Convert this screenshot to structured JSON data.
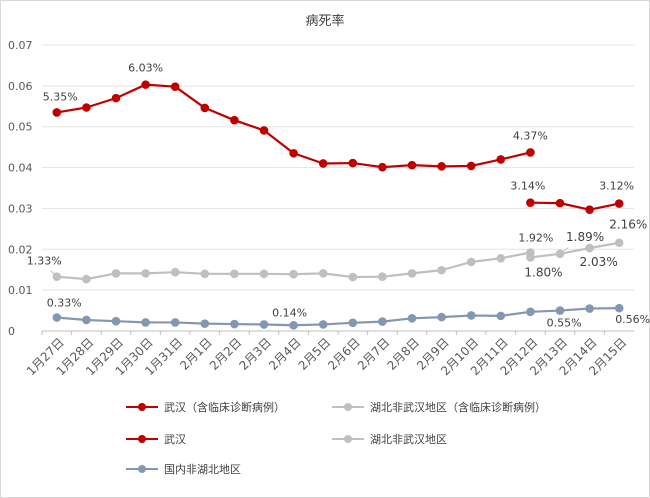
{
  "chart_data": {
    "type": "line",
    "title": "病死率",
    "categories": [
      "1月27日",
      "1月28日",
      "1月29日",
      "1月30日",
      "1月31日",
      "2月1日",
      "2月2日",
      "2月3日",
      "2月4日",
      "2月5日",
      "2月6日",
      "2月7日",
      "2月8日",
      "2月9日",
      "2月10日",
      "2月11日",
      "2月12日",
      "2月13日",
      "2月14日",
      "2月15日"
    ],
    "ylim": [
      0,
      0.07
    ],
    "yticks": [
      "0",
      "0.01",
      "0.02",
      "0.03",
      "0.04",
      "0.05",
      "0.06",
      "0.07"
    ],
    "grid": true,
    "legend_position": "bottom",
    "series": [
      {
        "name": "武汉（含临床诊断病例）",
        "color": "#c00000",
        "values": [
          null,
          null,
          null,
          null,
          null,
          null,
          null,
          null,
          null,
          null,
          null,
          null,
          null,
          null,
          null,
          null,
          0.0314,
          0.0313,
          0.0297,
          0.0312
        ]
      },
      {
        "name": "湖北非武汉地区（含临床诊断病例）",
        "color": "#bfbfbf",
        "values": [
          null,
          null,
          null,
          null,
          null,
          null,
          null,
          null,
          null,
          null,
          null,
          null,
          null,
          null,
          null,
          null,
          0.018,
          0.0189,
          0.0203,
          0.0216
        ]
      },
      {
        "name": "武汉",
        "color": "#c00000",
        "values": [
          0.0535,
          0.0547,
          0.057,
          0.0603,
          0.0598,
          0.0546,
          0.0516,
          0.0491,
          0.0435,
          0.041,
          0.0411,
          0.0401,
          0.0406,
          0.0403,
          0.0404,
          0.042,
          0.0437,
          null,
          null,
          null
        ]
      },
      {
        "name": "湖北非武汉地区",
        "color": "#bfbfbf",
        "values": [
          0.0133,
          0.0127,
          0.0141,
          0.0141,
          0.0144,
          0.014,
          0.014,
          0.014,
          0.0139,
          0.0141,
          0.0132,
          0.0133,
          0.0141,
          0.0149,
          0.0169,
          0.0178,
          0.0192,
          null,
          null,
          null
        ]
      },
      {
        "name": "国内非湖北地区",
        "color": "#8497b0",
        "values": [
          0.0033,
          0.0027,
          0.0024,
          0.0021,
          0.0021,
          0.0018,
          0.0017,
          0.0016,
          0.0014,
          0.0016,
          0.002,
          0.0023,
          0.0031,
          0.0034,
          0.0038,
          0.0037,
          0.0047,
          0.005,
          0.0055,
          0.0056
        ]
      }
    ],
    "annotations": [
      {
        "text": "5.35%",
        "series": 2,
        "index": 0
      },
      {
        "text": "6.03%",
        "series": 2,
        "index": 3
      },
      {
        "text": "4.37%",
        "series": 2,
        "index": 16
      },
      {
        "text": "3.14%",
        "series": 0,
        "index": 16
      },
      {
        "text": "3.12%",
        "series": 0,
        "index": 19
      },
      {
        "text": "1.33%",
        "series": 3,
        "index": 0
      },
      {
        "text": "1.92%",
        "series": 3,
        "index": 16
      },
      {
        "text": "1.80%",
        "series": 1,
        "index": 16
      },
      {
        "text": "1.89%",
        "series": 1,
        "index": 17
      },
      {
        "text": "2.03%",
        "series": 1,
        "index": 18
      },
      {
        "text": "2.16%",
        "series": 1,
        "index": 19
      },
      {
        "text": "0.33%",
        "series": 4,
        "index": 0
      },
      {
        "text": "0.14%",
        "series": 4,
        "index": 8
      },
      {
        "text": "0.55%",
        "series": 4,
        "index": 18
      },
      {
        "text": "0.56%",
        "series": 4,
        "index": 19
      }
    ]
  }
}
